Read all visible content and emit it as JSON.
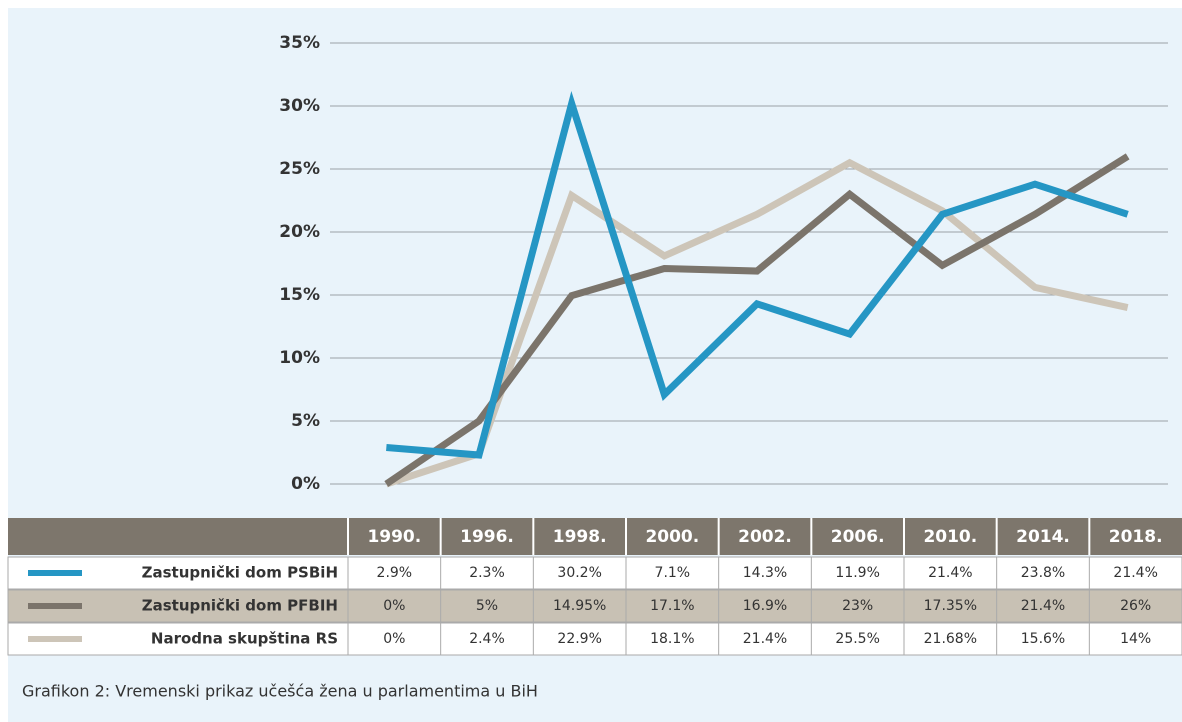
{
  "chart_data": {
    "type": "line",
    "categories": [
      "1990.",
      "1996.",
      "1998.",
      "2000.",
      "2002.",
      "2006.",
      "2010.",
      "2014.",
      "2018."
    ],
    "series": [
      {
        "name": "Zastupnički dom PSBiH",
        "color": "#2596c4",
        "values": [
          2.9,
          2.3,
          30.2,
          7.1,
          14.3,
          11.9,
          21.4,
          23.8,
          21.4
        ],
        "value_labels": [
          "2.9%",
          "2.3%",
          "30.2%",
          "7.1%",
          "14.3%",
          "11.9%",
          "21.4%",
          "23.8%",
          "21.4%"
        ]
      },
      {
        "name": "Zastupnički dom PFBIH",
        "color": "#7b746b",
        "values": [
          0,
          5,
          14.95,
          17.1,
          16.9,
          23,
          17.35,
          21.4,
          26
        ],
        "value_labels": [
          "0%",
          "5%",
          "14.95%",
          "17.1%",
          "16.9%",
          "23%",
          "17.35%",
          "21.4%",
          "26%"
        ]
      },
      {
        "name": "Narodna skupština RS",
        "color": "#cdc5b8",
        "values": [
          0,
          2.4,
          22.9,
          18.1,
          21.4,
          25.5,
          21.68,
          15.6,
          14
        ],
        "value_labels": [
          "0%",
          "2.4%",
          "22.9%",
          "18.1%",
          "21.4%",
          "25.5%",
          "21.68%",
          "15.6%",
          "14%"
        ]
      }
    ],
    "ylim": [
      0,
      35
    ],
    "yticks": [
      {
        "value": 0,
        "label": "0%"
      },
      {
        "value": 5,
        "label": "5%"
      },
      {
        "value": 10,
        "label": "10%"
      },
      {
        "value": 15,
        "label": "15%"
      },
      {
        "value": 20,
        "label": "20%"
      },
      {
        "value": 25,
        "label": "25%"
      },
      {
        "value": 30,
        "label": "30%"
      },
      {
        "value": 35,
        "label": "35%"
      }
    ],
    "grid": true,
    "caption": "Grafikon 2: Vremenski prikaz učešća žena u parlamentima u BiH"
  }
}
